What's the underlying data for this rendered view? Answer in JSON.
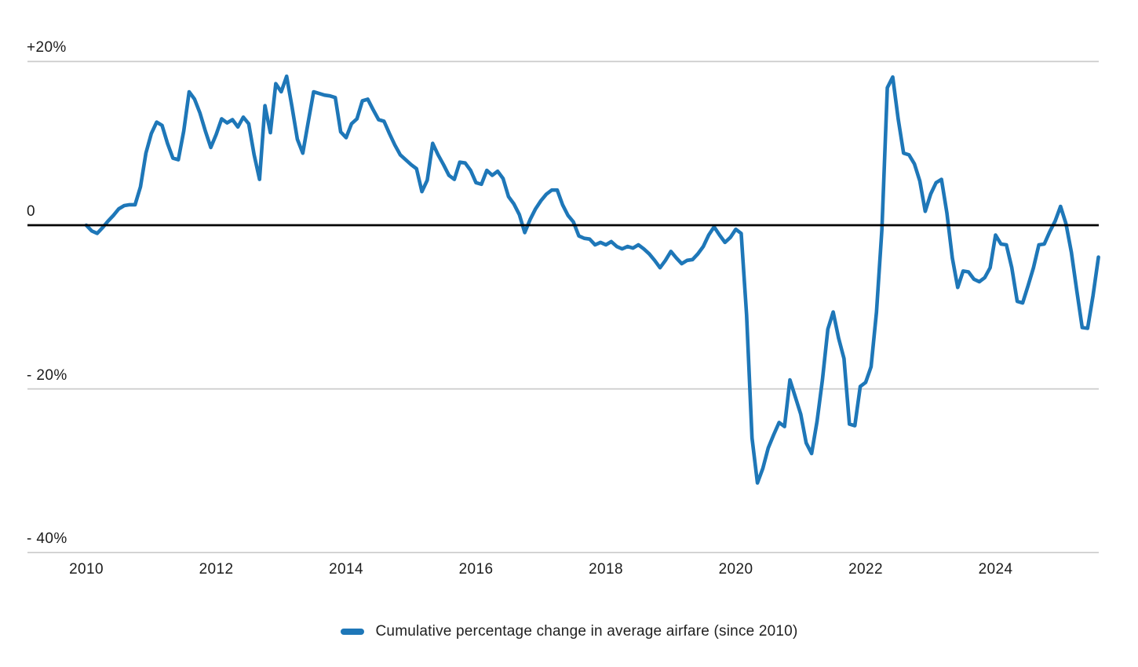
{
  "page": {
    "background": "#ffffff"
  },
  "colors": {
    "line": "#1e77b8",
    "grid": "#cbcbcb",
    "zero_line": "#000000",
    "text": "#1c1c1c"
  },
  "legend": {
    "label": "Cumulative percentage change in average airfare (since 2010)"
  },
  "chart_data": {
    "type": "line",
    "title": "",
    "unit": "percent",
    "frequency": "monthly",
    "x_start": "2010-01",
    "x_end": "2025-08",
    "grid": true,
    "zero_line": true,
    "legend_position": "bottom-center",
    "ylim": [
      -42,
      22
    ],
    "y_ticks": [
      {
        "label": "+20%",
        "value": 20
      },
      {
        "label": "0",
        "value": 0
      },
      {
        "label": "- 20%",
        "value": -20
      },
      {
        "label": "- 40%",
        "value": -40
      }
    ],
    "x_ticks": [
      {
        "label": "2010",
        "year": 2010
      },
      {
        "label": "2012",
        "year": 2012
      },
      {
        "label": "2014",
        "year": 2014
      },
      {
        "label": "2016",
        "year": 2016
      },
      {
        "label": "2018",
        "year": 2018
      },
      {
        "label": "2020",
        "year": 2020
      },
      {
        "label": "2022",
        "year": 2022
      },
      {
        "label": "2024",
        "year": 2024
      }
    ],
    "series": [
      {
        "name": "Cumulative percentage change in average airfare (since 2010)",
        "color": "#1e77b8",
        "values": [
          0.0,
          -0.7,
          -1.0,
          -0.3,
          0.5,
          1.2,
          2.0,
          2.4,
          2.5,
          2.5,
          4.7,
          8.8,
          11.2,
          12.6,
          12.2,
          10.0,
          8.2,
          8.0,
          11.5,
          16.3,
          15.4,
          13.7,
          11.5,
          9.5,
          11.1,
          13.0,
          12.5,
          12.9,
          12.0,
          13.2,
          12.4,
          8.6,
          5.6,
          14.6,
          11.3,
          17.3,
          16.3,
          18.2,
          14.5,
          10.5,
          8.8,
          12.6,
          16.3,
          16.1,
          15.9,
          15.8,
          15.6,
          11.4,
          10.7,
          12.4,
          13.0,
          15.2,
          15.4,
          14.1,
          12.9,
          12.7,
          11.2,
          9.8,
          8.6,
          8.0,
          7.4,
          6.9,
          4.1,
          5.5,
          10.0,
          8.6,
          7.4,
          6.1,
          5.6,
          7.7,
          7.6,
          6.7,
          5.2,
          5.0,
          6.7,
          6.1,
          6.6,
          5.7,
          3.5,
          2.6,
          1.3,
          -0.9,
          0.7,
          2.0,
          3.0,
          3.8,
          4.3,
          4.3,
          2.5,
          1.2,
          0.4,
          -1.3,
          -1.6,
          -1.7,
          -2.4,
          -2.1,
          -2.4,
          -2.0,
          -2.6,
          -2.9,
          -2.6,
          -2.8,
          -2.4,
          -2.9,
          -3.5,
          -4.3,
          -5.2,
          -4.3,
          -3.2,
          -4.0,
          -4.7,
          -4.3,
          -4.2,
          -3.5,
          -2.6,
          -1.2,
          -0.2,
          -1.2,
          -2.1,
          -1.5,
          -0.5,
          -1.0,
          -11.0,
          -26.0,
          -31.5,
          -29.7,
          -27.2,
          -25.6,
          -24.1,
          -24.6,
          -18.9,
          -21.0,
          -23.1,
          -26.6,
          -27.9,
          -24.0,
          -18.9,
          -12.7,
          -10.6,
          -13.8,
          -16.3,
          -24.3,
          -24.5,
          -19.7,
          -19.2,
          -17.3,
          -10.6,
          -0.5,
          16.8,
          18.1,
          13.0,
          8.8,
          8.6,
          7.5,
          5.4,
          1.7,
          3.8,
          5.2,
          5.6,
          1.5,
          -4.0,
          -7.6,
          -5.6,
          -5.7,
          -6.6,
          -6.9,
          -6.4,
          -5.2,
          -1.2,
          -2.3,
          -2.4,
          -5.2,
          -9.3,
          -9.5,
          -7.4,
          -5.2,
          -2.4,
          -2.3,
          -0.8,
          0.5,
          2.3,
          0.2,
          -3.3,
          -8.0,
          -12.5,
          -12.6,
          -8.6,
          -3.9
        ]
      }
    ]
  }
}
